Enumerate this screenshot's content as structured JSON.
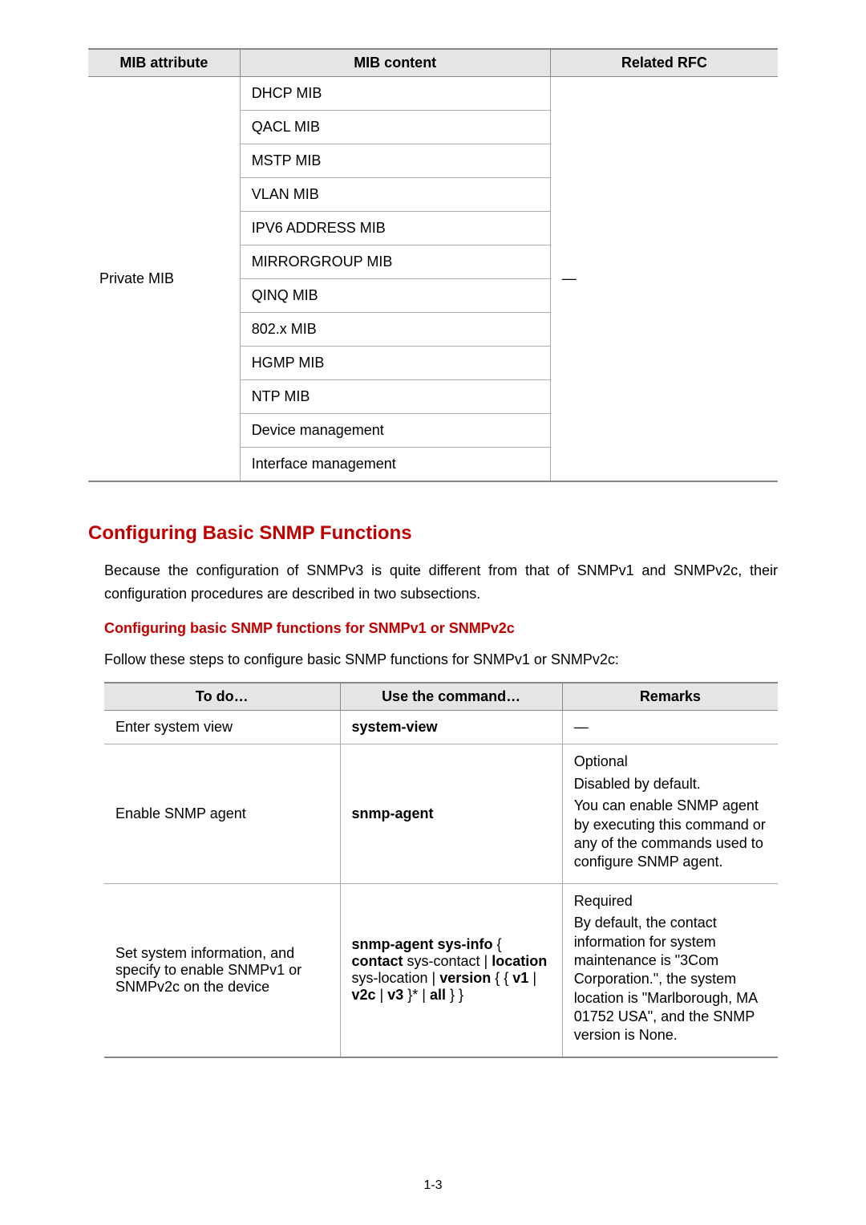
{
  "table1": {
    "headers": [
      "MIB attribute",
      "MIB content",
      "Related RFC"
    ],
    "attrib": "Private MIB",
    "rfc": "—",
    "contents": [
      "DHCP MIB",
      "QACL MIB",
      "MSTP MIB",
      "VLAN MIB",
      "IPV6 ADDRESS MIB",
      "MIRRORGROUP MIB",
      "QINQ MIB",
      "802.x MIB",
      "HGMP MIB",
      "NTP MIB",
      "Device management",
      "Interface management"
    ]
  },
  "section": {
    "title": "Configuring Basic SNMP Functions",
    "para": "Because the configuration of SNMPv3 is quite different from that of SNMPv1 and SNMPv2c, their configuration procedures are described in two subsections.",
    "sub_title": "Configuring basic SNMP functions for SNMPv1 or SNMPv2c",
    "sub_para": "Follow these steps to configure basic SNMP functions for SNMPv1 or SNMPv2c:"
  },
  "table2": {
    "headers": [
      "To do…",
      "Use the command…",
      "Remarks"
    ],
    "rows": [
      {
        "todo": "Enter system view",
        "cmd": "system-view",
        "remarks_dash": "—"
      },
      {
        "todo": "Enable SNMP agent",
        "cmd": "snmp-agent",
        "remark_l1": "Optional",
        "remark_l2": "Disabled by default.",
        "remark_l3": "You can enable SNMP agent by executing this command or any of the commands used to configure SNMP agent."
      },
      {
        "todo": "Set system information, and specify to enable SNMPv1 or SNMPv2c on the device",
        "cmd_b1": "snmp-agent sys-info",
        "cmd_p1": " { ",
        "cmd_b2": "contact",
        "cmd_p2": " sys-contact | ",
        "cmd_b3": "location",
        "cmd_p3": " sys-location | ",
        "cmd_b4": "version",
        "cmd_p4": " { { ",
        "cmd_b5": "v1",
        "cmd_p5": " | ",
        "cmd_b6": "v2c",
        "cmd_p6": " | ",
        "cmd_b7": "v3",
        "cmd_p7": " }* | ",
        "cmd_b8": "all",
        "cmd_p8": " } }",
        "remark_l1": "Required",
        "remark_l2": "By default, the contact information for system maintenance is \"3Com Corporation.\", the system location is \"Marlborough, MA 01752 USA\", and the SNMP version is None."
      }
    ]
  },
  "page_num": "1-3"
}
